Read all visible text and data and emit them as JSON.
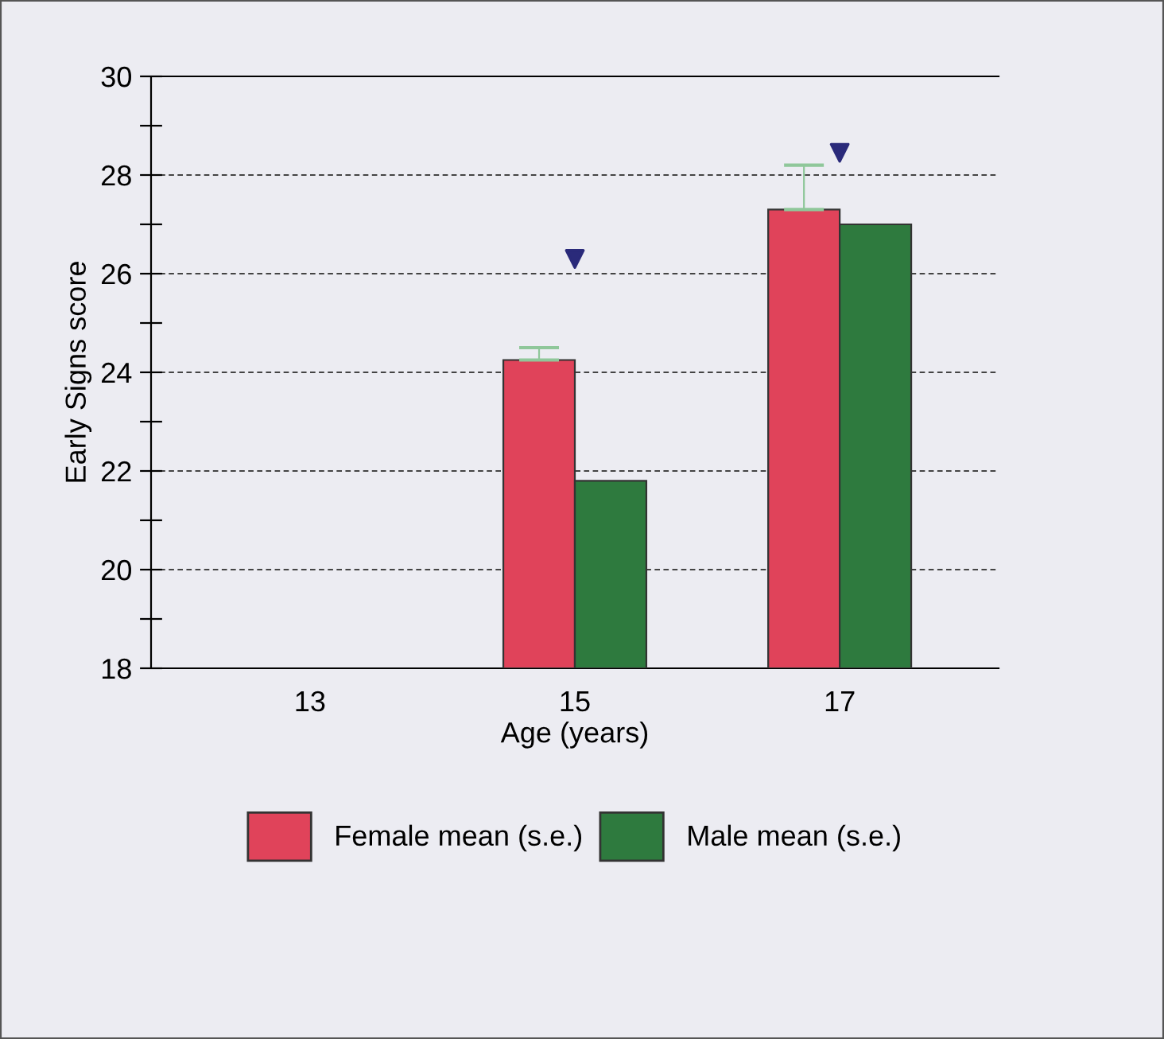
{
  "chart_data": {
    "type": "bar",
    "xlabel": "Age (years)",
    "ylabel": "Early Signs score",
    "categories": [
      "13",
      "15",
      "17"
    ],
    "series": [
      {
        "name": "Female mean (s.e.)",
        "color": "#e0435a",
        "values": [
          null,
          24.25,
          27.3
        ],
        "errors": [
          null,
          [
            24.25,
            24.5
          ],
          [
            27.3,
            28.2
          ]
        ]
      },
      {
        "name": "Male mean (s.e.)",
        "color": "#2e7a3e",
        "values": [
          null,
          21.8,
          27.0
        ]
      },
      {
        "type": "scatter",
        "x": [
          "15",
          "17"
        ],
        "color": "#2a2a7a",
        "marker": "triangle",
        "values": [
          26.3,
          28.45
        ]
      }
    ],
    "ylim": [
      18,
      30
    ],
    "yticks": [
      18,
      {
        "value": 19,
        "label": null
      },
      20,
      {
        "value": 21,
        "label": null
      },
      22,
      {
        "value": 23,
        "label": null
      },
      24,
      {
        "value": 25,
        "label": null
      },
      26,
      {
        "value": 27,
        "label": null
      },
      28,
      {
        "value": 29,
        "label": null
      },
      30
    ],
    "grid": "y",
    "legend": "bottom"
  }
}
